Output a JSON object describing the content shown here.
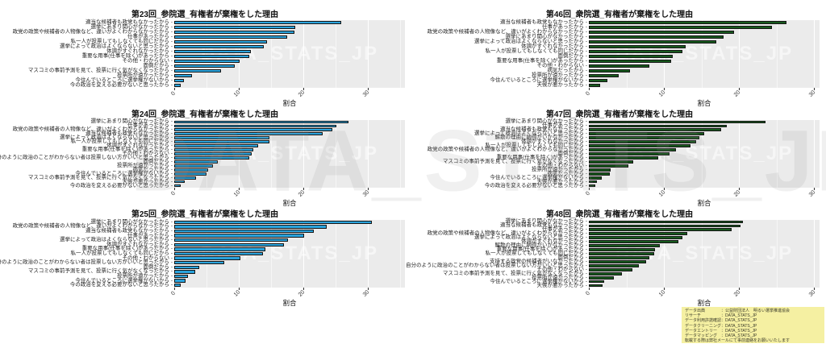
{
  "watermark": {
    "large": "DATA_STATS_JP",
    "panel": "DATA_STATS_JP"
  },
  "chart_data": [
    {
      "type": "bar",
      "title": "第23回_参院選_有権者が棄権をした理由",
      "xlabel": "割合",
      "xticks": [
        0,
        10,
        20,
        30
      ],
      "xmax": 35.8,
      "bar_color": "#2aa3dc",
      "panel_bg": "#ebebeb",
      "categories": [
        "適当な候補者も政党もなかったから",
        "選挙にあまり関心がなかったから",
        "政党の政策や候補者の人物像など、違いがよくわからなかったから",
        "仕事があったから",
        "私一人が投票してもしなくても同じだから",
        "選挙によって政治はよくならないと思ったから",
        "体調がすぐれなかったから",
        "重要な用事(仕事を除く)があったから",
        "その他・わからない",
        "面倒だから",
        "マスコミの事前予測を見て、投票に行く気がなくなったから",
        "投票所が遠かったから",
        "今住んでいるところに選挙権がないから",
        "今の政治を変える必要がないと思ったから"
      ],
      "values": [
        25.9,
        18.8,
        18.7,
        17.5,
        14.4,
        13.9,
        11.9,
        11.7,
        10.1,
        9.4,
        7.3,
        2.7,
        1.5,
        1.0
      ]
    },
    {
      "type": "bar",
      "title": "第46回_衆院選_有権者が棄権をした理由",
      "xlabel": "割合",
      "xticks": [
        0,
        10,
        20,
        30
      ],
      "xmax": 30.7,
      "bar_color": "#17591d",
      "panel_bg": "#ebebeb",
      "categories": [
        "適当な候補者も政党もなかったから",
        "仕事があったから",
        "政党の政策や候補者の人物像など、違いがよくわからなかったから",
        "選挙にあまり関心がなかったから",
        "選挙によって政治はよくならないと思ったから",
        "体調がすぐれなかったから",
        "私一人が投票してもしなくても同じだから",
        "面倒だから",
        "重要な用事(仕事を除く)があったから",
        "その他・わからない",
        "病気だったから",
        "投票所が遠かったから",
        "今住んでいるところに選挙権がないから",
        "天候が悪かったから"
      ],
      "values": [
        26.3,
        24.4,
        19.3,
        17.9,
        17.0,
        12.9,
        12.5,
        11.2,
        11.0,
        8.0,
        5.5,
        4.0,
        2.5,
        1.5
      ]
    },
    {
      "type": "bar",
      "title": "第24回_参院選_有権者が棄権をした理由",
      "xlabel": "割合",
      "xticks": [
        0,
        10,
        20,
        30
      ],
      "xmax": 35.8,
      "bar_color": "#2aa3dc",
      "panel_bg": "#ebebeb",
      "categories": [
        "選挙にあまり関心がなかったから",
        "仕事があったから",
        "政党の政策や候補者の人物像など、違いがよくわからなかったから",
        "適当な候補者も政党もなかったから",
        "選挙によって政治はよくならないと思ったから",
        "私一人が投票してもしなくても同じだから",
        "体調がすぐれなかったから",
        "重要な用事(仕事を除く)があったから",
        "その他・わからない",
        "自分のように政治のことがわからない者は投票しない方がいいと思ったから",
        "面倒だから",
        "投票所が遠かったから",
        "病気だったから",
        "今住んでいるところに選挙権がないから",
        "マスコミの事前予測を見て、投票に行く気がなくなったから",
        "天候が悪かったから",
        "今の政治を変える必要がないと思ったから"
      ],
      "values": [
        27.1,
        25.1,
        24.5,
        23.0,
        14.8,
        14.8,
        13.0,
        12.3,
        12.0,
        11.6,
        6.8,
        6.0,
        5.3,
        5.0,
        3.4,
        1.6,
        1.0
      ]
    },
    {
      "type": "bar",
      "title": "第47回_衆院選_有権者が棄権をした理由",
      "xlabel": "割合",
      "xticks": [
        0,
        10,
        20,
        30
      ],
      "xmax": 30.7,
      "bar_color": "#17591d",
      "panel_bg": "#ebebeb",
      "categories": [
        "選挙にあまり関心がなかったから",
        "仕事があったから",
        "適当な候補者も政党もなかったから",
        "選挙によって政治はよくならないと思ったから",
        "解散の理由に納得がいかなかったから",
        "体調がすぐれなかったから",
        "私一人が投票してもしなくても同じだから",
        "政党の政策や候補者の人物像など、違いがよくわからなかったから",
        "面倒だから",
        "重要な用事(仕事を除く)があったから",
        "マスコミの事前予測を見て、投票に行く気がなくなったから",
        "その他・わからない",
        "投票所が遠かったから",
        "病気だったから",
        "今住んでいるところに選挙権がないから",
        "天候が悪かったから",
        "今の政治を変える必要がないと思ったから"
      ],
      "values": [
        23.5,
        18.4,
        17.6,
        15.4,
        14.7,
        14.3,
        13.5,
        11.6,
        10.7,
        9.2,
        5.9,
        5.3,
        2.9,
        2.8,
        1.7,
        1.1,
        0.9
      ]
    },
    {
      "type": "bar",
      "title": "第25回_参院選_有権者が棄権をした理由",
      "xlabel": "割合",
      "xticks": [
        0,
        10,
        20,
        30
      ],
      "xmax": 35.8,
      "bar_color": "#2aa3dc",
      "panel_bg": "#ebebeb",
      "categories": [
        "選挙にあまり関心がなかったから",
        "政党の政策や候補者の人物像など、違いがよくわからなかったから",
        "適当な候補者も政党もなかったから",
        "仕事があったから",
        "選挙によって政治はよくならないと思ったから",
        "体調がすぐれなかったから",
        "重要な用事(仕事を除く)があったから",
        "私一人が投票してもしなくても同じだから",
        "その他・わからない",
        "自分のように政治のことがわからない者は投票しない方がいいと思ったから",
        "面倒だから",
        "マスコミの事前予測を見て、投票に行く気がなくなったから",
        "投票所が遠かったから",
        "今住んでいるところに選挙権がないから",
        "今の政治を変える必要がないと思ったから"
      ],
      "values": [
        30.7,
        23.6,
        21.6,
        20.2,
        17.6,
        17.0,
        14.2,
        13.8,
        10.3,
        7.7,
        3.9,
        3.2,
        2.1,
        1.7,
        1.0
      ]
    },
    {
      "type": "bar",
      "title": "第48回_衆院選_有権者が棄権をした理由",
      "xlabel": "割合",
      "xticks": [
        0,
        10,
        20,
        30
      ],
      "xmax": 30.7,
      "bar_color": "#17591d",
      "panel_bg": "#ebebeb",
      "categories": [
        "選挙にあまり関心がなかったから",
        "適当な候補者も政党もなかったから",
        "仕事があったから",
        "政党の政策や候補者の人物像など、違いがよくわからなかったから",
        "選挙によって政治はよくならないと思ったから",
        "体調がすぐれなかったから",
        "解散の理由に納得がいかなかったから",
        "重要な用事(仕事を除く)があったから",
        "私一人が投票してもしなくても同じだから",
        "面倒だから",
        "支持する政党の候補者がいなかったから",
        "自分のように政治のことがわからない者は投票しない方がいいと思ったから",
        "その他・わからない",
        "マスコミの事前予測を見て、投票に行く気がなくなったから",
        "投票所が遠かったから",
        "今住んでいるところに選挙権がないから",
        "天候が悪かったから"
      ],
      "values": [
        20.5,
        20.2,
        19.0,
        13.1,
        12.5,
        11.9,
        9.4,
        8.8,
        8.7,
        8.1,
        7.6,
        6.7,
        5.8,
        4.4,
        3.3,
        2.0,
        1.8
      ]
    }
  ],
  "notes": {
    "lines": [
      "データ出典　　　　：公益財団法人　明るい選挙推進協会",
      "リサーチ　　　　　：DATA_STATS_JP",
      "データ利用許諾確認：DATA_STATS_JP",
      "データクリーニング：DATA_STATS_JP",
      "データエントリー　：DATA_STATS_JP",
      "データマッピング　：DATA_STATS_JP",
      "転載する際は弊社メールにて事前連絡をお願いいたします"
    ]
  }
}
